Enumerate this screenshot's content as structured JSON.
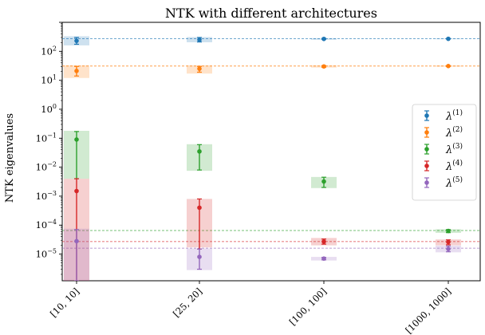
{
  "chart_data": {
    "type": "scatter",
    "title": "NTK with different architectures",
    "xlabel": "",
    "ylabel": "NTK eigenvalues",
    "yscale": "log",
    "ylim": [
      1.2e-06,
      1000
    ],
    "categories": [
      "[10, 10]",
      "[25, 20]",
      "[100, 100]",
      "[1000, 1000]"
    ],
    "yticks": [
      {
        "value": 1e-05,
        "label": "10",
        "exp": "−5"
      },
      {
        "value": 0.0001,
        "label": "10",
        "exp": "−4"
      },
      {
        "value": 0.001,
        "label": "10",
        "exp": "−3"
      },
      {
        "value": 0.01,
        "label": "10",
        "exp": "−2"
      },
      {
        "value": 0.1,
        "label": "10",
        "exp": "−1"
      },
      {
        "value": 1,
        "label": "10",
        "exp": "0"
      },
      {
        "value": 10,
        "label": "10",
        "exp": "1"
      },
      {
        "value": 100,
        "label": "10",
        "exp": "2"
      }
    ],
    "legend_position": "right",
    "series": [
      {
        "name": "λ",
        "sup": "(1)",
        "color": "#1f77b4",
        "reference": 270,
        "values": [
          230,
          250,
          268,
          270
        ],
        "err_low": [
          175,
          210,
          260,
          266
        ],
        "err_high": [
          300,
          300,
          278,
          274
        ],
        "band_low": [
          160,
          205,
          250,
          262
        ],
        "band_high": [
          330,
          310,
          285,
          278
        ]
      },
      {
        "name": "λ",
        "sup": "(2)",
        "color": "#ff7f0e",
        "reference": 31,
        "values": [
          21,
          25,
          30,
          31
        ],
        "err_low": [
          14,
          19,
          28,
          30
        ],
        "err_high": [
          30,
          30,
          32,
          31.8
        ],
        "band_low": [
          12,
          17,
          27.5,
          29.5
        ],
        "band_high": [
          33,
          33,
          33,
          32.5
        ]
      },
      {
        "name": "λ",
        "sup": "(3)",
        "color": "#2ca02c",
        "reference": 6.5e-05,
        "values": [
          0.09,
          0.035,
          0.0032,
          6.3e-05
        ],
        "err_low": [
          0.004,
          0.008,
          0.002,
          5.5e-05
        ],
        "err_high": [
          0.17,
          0.06,
          0.0045,
          7e-05
        ],
        "band_low": [
          0.004,
          0.0075,
          0.0019,
          5.4e-05
        ],
        "band_high": [
          0.18,
          0.062,
          0.0046,
          7.2e-05
        ]
      },
      {
        "name": "λ",
        "sup": "(4)",
        "color": "#d62728",
        "reference": 2.7e-05,
        "values": [
          0.0015,
          0.0004,
          2.7e-05,
          2.6e-05
        ],
        "err_low": [
          1.2e-06,
          1.5e-05,
          2.2e-05,
          2.1e-05
        ],
        "err_high": [
          0.004,
          0.0008,
          3.3e-05,
          3.1e-05
        ],
        "band_low": [
          1.2e-06,
          1.7e-05,
          2e-05,
          2e-05
        ],
        "band_high": [
          0.004,
          0.0008,
          3.6e-05,
          3.2e-05
        ]
      },
      {
        "name": "λ",
        "sup": "(5)",
        "color": "#9467bd",
        "reference": 1.6e-05,
        "values": [
          2.8e-05,
          8e-06,
          7e-06,
          1.5e-05
        ],
        "err_low": [
          1.2e-06,
          3e-06,
          6.3e-06,
          1.2e-05
        ],
        "err_high": [
          7e-05,
          1.5e-05,
          7.7e-06,
          1.9e-05
        ],
        "band_low": [
          1.2e-06,
          2.8e-06,
          6e-06,
          1.15e-05
        ],
        "band_high": [
          7.5e-05,
          1.55e-05,
          8e-06,
          1.95e-05
        ]
      }
    ]
  }
}
